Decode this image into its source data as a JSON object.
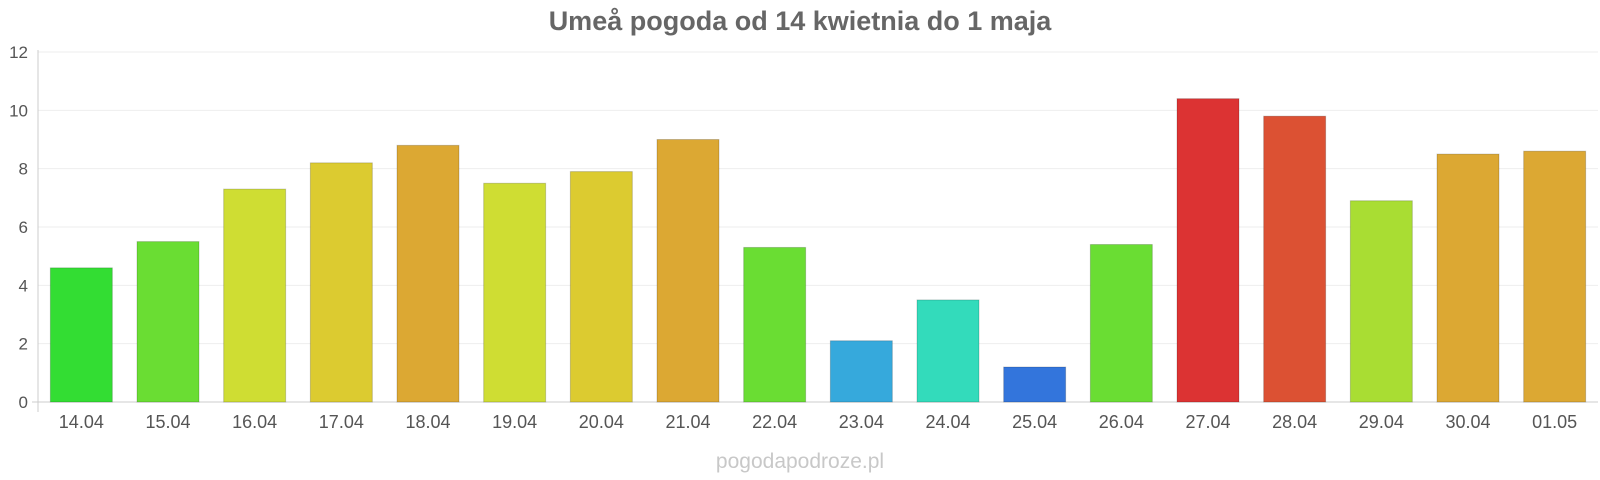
{
  "chart_data": {
    "type": "bar",
    "title": "Umeå pogoda od 14 kwietnia do 1 maja",
    "categories": [
      "14.04",
      "15.04",
      "16.04",
      "17.04",
      "18.04",
      "19.04",
      "20.04",
      "21.04",
      "22.04",
      "23.04",
      "24.04",
      "25.04",
      "26.04",
      "27.04",
      "28.04",
      "29.04",
      "30.04",
      "01.05"
    ],
    "values": [
      4.6,
      5.5,
      7.3,
      8.2,
      8.8,
      7.5,
      7.9,
      9.0,
      5.3,
      2.1,
      3.5,
      1.2,
      5.4,
      10.4,
      9.8,
      6.9,
      8.5,
      8.6
    ],
    "bar_colors": [
      "#33dd33",
      "#6add33",
      "#cfdd33",
      "#dccb30",
      "#dca833",
      "#cfdd33",
      "#dccb30",
      "#dca833",
      "#6add33",
      "#36a9dc",
      "#33dbbb",
      "#3375dc",
      "#6add33",
      "#dc3333",
      "#dc5133",
      "#a9dd33",
      "#dca833",
      "#dca833"
    ],
    "ylim": [
      0,
      12
    ],
    "yticks": [
      0,
      2,
      4,
      6,
      8,
      10,
      12
    ],
    "xlabel": "",
    "ylabel": "",
    "grid": true
  },
  "watermark": "pogodapodroze.pl"
}
